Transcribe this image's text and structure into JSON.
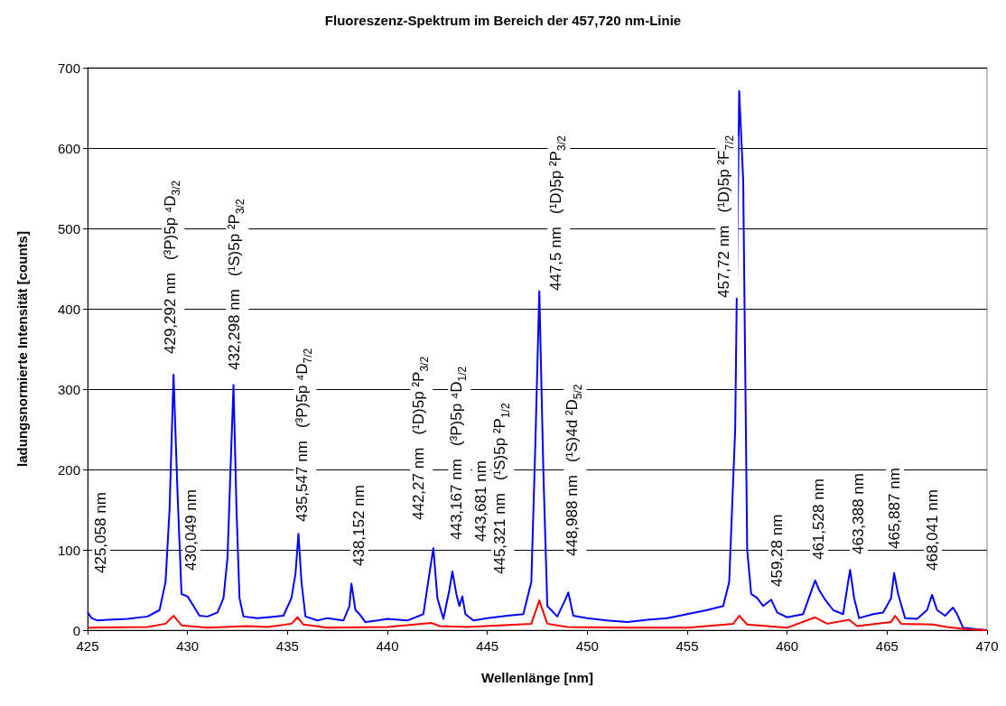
{
  "chart_data": {
    "type": "line",
    "title": "Fluoreszenz-Spektrum im Bereich der 457,720 nm-Linie",
    "xlabel": "Wellenlänge [nm]",
    "ylabel": "ladungsnormierte Intensität [counts]",
    "xlim": [
      425,
      470
    ],
    "xticks": [
      425,
      430,
      435,
      440,
      445,
      450,
      455,
      460,
      465,
      470
    ],
    "ylim": [
      0,
      700
    ],
    "yticks": [
      0,
      100,
      200,
      300,
      400,
      500,
      600,
      700
    ],
    "grid": "y",
    "marker": "none",
    "series": [
      {
        "color": "#0000ff",
        "x": [
          425,
          425.2,
          425.5,
          426,
          427,
          428,
          428.6,
          428.9,
          429.1,
          429.3,
          429.5,
          429.7,
          430,
          430.3,
          430.6,
          431,
          431.5,
          431.8,
          432,
          432.15,
          432.3,
          432.45,
          432.6,
          432.8,
          433.5,
          434,
          434.8,
          435.2,
          435.4,
          435.55,
          435.7,
          435.9,
          436.5,
          437,
          437.8,
          438.1,
          438.2,
          438.4,
          438.6,
          438.9,
          439.5,
          440,
          441,
          441.8,
          442.1,
          442.3,
          442.5,
          442.8,
          443.1,
          443.25,
          443.45,
          443.6,
          443.75,
          443.9,
          444.3,
          445,
          446,
          446.8,
          447.2,
          447.4,
          447.6,
          447.8,
          448,
          448.5,
          448.9,
          449.05,
          449.3,
          450,
          451,
          452,
          453,
          454,
          455,
          456,
          456.8,
          457.1,
          457.4,
          457.6,
          457.8,
          458,
          458.2,
          458.5,
          458.8,
          459.2,
          459.5,
          460,
          460.8,
          461.3,
          461.4,
          461.6,
          461.9,
          462.3,
          462.8,
          463.05,
          463.15,
          463.35,
          463.6,
          464.3,
          464.8,
          465.2,
          465.35,
          465.55,
          465.9,
          466.5,
          467,
          467.25,
          467.5,
          467.9,
          468.3,
          468.5,
          468.8,
          469.5,
          470
        ],
        "values": [
          22,
          15,
          12,
          13,
          14,
          17,
          25,
          60,
          150,
          318,
          170,
          45,
          42,
          30,
          18,
          17,
          22,
          40,
          90,
          200,
          305,
          150,
          40,
          17,
          15,
          16,
          18,
          40,
          70,
          120,
          60,
          17,
          12,
          15,
          12,
          30,
          58,
          25,
          20,
          10,
          12,
          14,
          12,
          20,
          70,
          102,
          40,
          14,
          50,
          73,
          45,
          30,
          42,
          20,
          12,
          15,
          18,
          20,
          60,
          230,
          422,
          200,
          30,
          17,
          38,
          47,
          18,
          15,
          12,
          10,
          13,
          15,
          20,
          25,
          30,
          60,
          250,
          671,
          560,
          100,
          45,
          40,
          30,
          38,
          22,
          16,
          20,
          55,
          62,
          50,
          38,
          25,
          20,
          60,
          75,
          40,
          15,
          20,
          22,
          40,
          71,
          45,
          15,
          14,
          25,
          44,
          25,
          18,
          28,
          20,
          3,
          1,
          0
        ]
      },
      {
        "color": "#ff0000",
        "x": [
          425,
          428,
          428.9,
          429.3,
          429.7,
          431,
          433,
          434,
          435.2,
          435.5,
          435.8,
          437,
          440,
          442.2,
          442.6,
          444,
          447.2,
          447.6,
          448,
          449,
          452,
          455,
          457.3,
          457.6,
          458,
          460,
          461.4,
          462,
          463.1,
          463.5,
          465.2,
          465.4,
          465.7,
          467.3,
          468,
          469,
          470
        ],
        "values": [
          3,
          4,
          8,
          18,
          6,
          3,
          5,
          4,
          8,
          16,
          7,
          3,
          4,
          9,
          5,
          4,
          8,
          37,
          8,
          4,
          3,
          3,
          8,
          18,
          7,
          3,
          16,
          8,
          13,
          5,
          10,
          18,
          8,
          7,
          4,
          1,
          0
        ]
      }
    ],
    "annotations": [
      "425,058 nm",
      "429,292 nm   (³P)5p ⁴D$_{3/2}$",
      "430,049 nm",
      "432,298 nm   (¹S)5p ²P$_{3/2}$",
      "435,547 nm   (³P)5p ⁴D$_{7/2}$",
      "438,152 nm",
      "442,27 nm   (¹D)5p ²P$_{3/2}$",
      "443,167 nm   (³P)5p ⁴D$_{1/2}$",
      "443,681 nm",
      "445,321 nm   (¹S)5p ²P$_{1/2}$",
      "447,5 nm   (¹D)5p ²P$_{3/2}$",
      "448,988 nm   (¹S)4d ²D$_{5/2}$",
      "457,72 nm   (¹D)5p ²F$_{7/2}$",
      "459,28 nm",
      "461,528 nm",
      "463,388 nm",
      "465,887 nm",
      "468,041 nm"
    ]
  }
}
